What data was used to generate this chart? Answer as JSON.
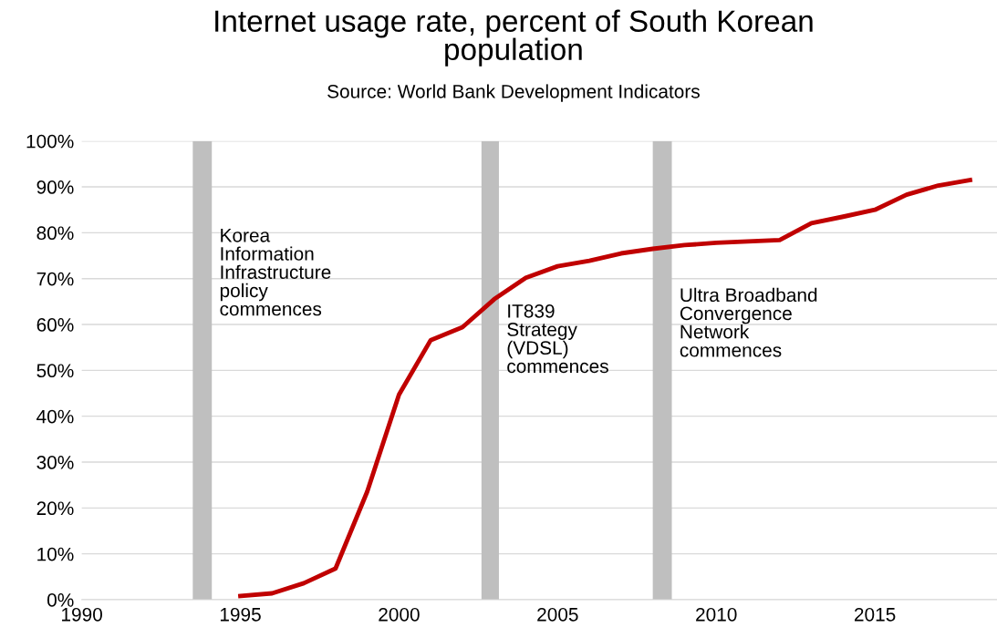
{
  "chart_data": {
    "type": "line",
    "title": "Internet usage rate, percent of South Korean\npopulation",
    "subtitle": "Source: World Bank Development Indicators",
    "x": [
      1995,
      1996,
      1997,
      1998,
      1999,
      2000,
      2001,
      2002,
      2003,
      2004,
      2005,
      2006,
      2007,
      2008,
      2009,
      2010,
      2011,
      2012,
      2013,
      2014,
      2015,
      2016,
      2017,
      2018
    ],
    "series": [
      {
        "color": "#c00000",
        "values": [
          0.8,
          1.4,
          3.6,
          6.8,
          23.6,
          44.7,
          56.6,
          59.4,
          65.5,
          70.2,
          72.7,
          73.9,
          75.5,
          76.5,
          77.3,
          77.8,
          78.1,
          78.4,
          82.1,
          83.5,
          85.0,
          88.3,
          90.3,
          91.5
        ]
      }
    ],
    "xlim": [
      1990,
      2018.85
    ],
    "xticks": [
      1990,
      1995,
      2000,
      2005,
      2010,
      2015
    ],
    "ylim": [
      0,
      100
    ],
    "yticks": [
      {
        "value": 0,
        "label": "0%"
      },
      {
        "value": 10,
        "label": "10%"
      },
      {
        "value": 20,
        "label": "20%"
      },
      {
        "value": 30,
        "label": "30%"
      },
      {
        "value": 40,
        "label": "40%"
      },
      {
        "value": 50,
        "label": "50%"
      },
      {
        "value": 60,
        "label": "60%"
      },
      {
        "value": 70,
        "label": "70%"
      },
      {
        "value": 80,
        "label": "80%"
      },
      {
        "value": 90,
        "label": "90%"
      },
      {
        "value": 100,
        "label": "100%"
      }
    ],
    "bands": [
      {
        "axis": "x",
        "from": 1993.5,
        "to": 1994.1,
        "color": "#bfbfbf",
        "label": "Korea\nInformation\nInfrastructure\npolicy\ncommences"
      },
      {
        "axis": "x",
        "from": 2002.6,
        "to": 2003.15,
        "color": "#bfbfbf",
        "label": "IT839\nStrategy\n(VDSL)\ncommences"
      },
      {
        "axis": "x",
        "from": 2008.0,
        "to": 2008.6,
        "color": "#bfbfbf",
        "label": "Ultra Broadband\nConvergence\nNetwork\ncommences"
      }
    ],
    "grid": "y",
    "marker": "none",
    "line_style": "solid",
    "legend": false
  }
}
